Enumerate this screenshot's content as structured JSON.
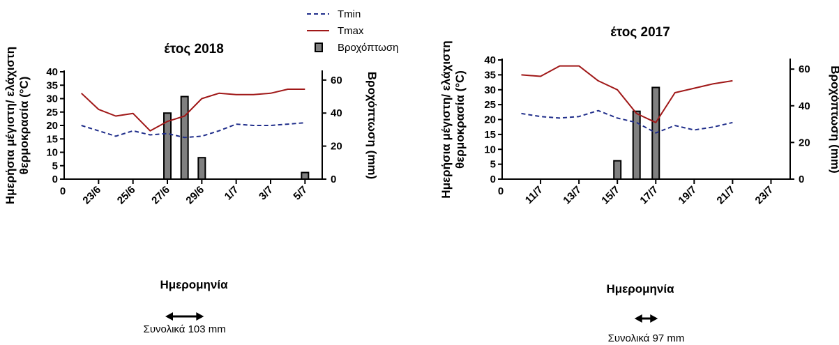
{
  "legend": {
    "position": "top-center",
    "items": [
      {
        "label": "Tmin",
        "style": "dashed-line",
        "color": "#1f2d8a"
      },
      {
        "label": "Tmax",
        "style": "solid-line",
        "color": "#a01818"
      },
      {
        "label": "Βροχόπτωση",
        "style": "bar",
        "color": "#808080"
      }
    ]
  },
  "chart_data": [
    {
      "type": "line+bar",
      "title": "έτος 2018",
      "xlabel": "Ημερομηνία",
      "ylabel": "Ημερήσια μέγιστη/ ελάχιστη θερμοκρασία (°C)",
      "y2label": "Βροχόπτωση (mm)",
      "x_origin_label": "0",
      "x_tick_labels": [
        "23/6",
        "25/6",
        "27/6",
        "29/6",
        "1/7",
        "3/7",
        "5/7"
      ],
      "x_ticks": [
        1,
        3,
        5,
        7,
        9,
        11,
        13
      ],
      "xlim": [
        -1,
        14
      ],
      "ylim": [
        0,
        40
      ],
      "y_ticks": [
        0,
        5,
        10,
        15,
        20,
        25,
        30,
        35,
        40
      ],
      "y2lim": [
        0,
        65
      ],
      "y2_ticks": [
        0,
        20,
        40,
        60
      ],
      "grid": false,
      "x": [
        0,
        1,
        2,
        3,
        4,
        5,
        6,
        7,
        8,
        9,
        10,
        11,
        12,
        13
      ],
      "series": [
        {
          "name": "Tmin",
          "axis": "left",
          "kind": "line",
          "values": [
            20,
            18,
            16,
            18,
            16.5,
            17,
            15.5,
            16,
            18,
            20.5,
            20,
            20,
            20.5,
            21
          ]
        },
        {
          "name": "Tmax",
          "axis": "right-temp",
          "kind": "line",
          "values": [
            32,
            26,
            23.5,
            24.5,
            18,
            21.5,
            23.5,
            30,
            32,
            31.5,
            31.5,
            32,
            33.5,
            33.5
          ]
        },
        {
          "name": "Βροχόπτωση",
          "axis": "right",
          "kind": "bar",
          "bars": [
            {
              "x": 5,
              "value": 40
            },
            {
              "x": 6,
              "value": 50
            },
            {
              "x": 7,
              "value": 13
            },
            {
              "x": 13,
              "value": 4
            }
          ]
        }
      ],
      "total_note": "Συνολικά 103 mm",
      "total_range_days": [
        5,
        7
      ]
    },
    {
      "type": "line+bar",
      "title": "έτος 2017",
      "xlabel": "Ημερομηνία",
      "ylabel": "Ημερήσια μέγιστη/ ελάχιστη θερμοκρασία (°C)",
      "y2label": "Βροχόπτωση (mm)",
      "x_origin_label": "0",
      "x_tick_labels": [
        "11/7",
        "13/7",
        "15/7",
        "17/7",
        "19/7",
        "21/7",
        "23/7"
      ],
      "x_ticks": [
        2,
        4,
        6,
        8,
        10,
        12,
        14
      ],
      "xlim": [
        0,
        15
      ],
      "ylim": [
        0,
        40
      ],
      "y_ticks": [
        0,
        5,
        10,
        15,
        20,
        25,
        30,
        35,
        40
      ],
      "y2lim": [
        0,
        65
      ],
      "y2_ticks": [
        0,
        20,
        40,
        60
      ],
      "grid": false,
      "x": [
        1,
        2,
        3,
        4,
        5,
        6,
        7,
        8,
        9,
        10,
        11,
        12
      ],
      "series": [
        {
          "name": "Tmin",
          "axis": "left",
          "kind": "line",
          "values": [
            22,
            21,
            20.5,
            21,
            23,
            20.5,
            19,
            15.5,
            18,
            16.5,
            17.5,
            19
          ]
        },
        {
          "name": "Tmax",
          "axis": "left",
          "kind": "line",
          "values": [
            35,
            34.5,
            38,
            38,
            33,
            30,
            22,
            19,
            29,
            30.5,
            32,
            33
          ]
        },
        {
          "name": "Βροχόπτωση",
          "axis": "right",
          "kind": "bar",
          "bars": [
            {
              "x": 6,
              "value": 10
            },
            {
              "x": 7,
              "value": 37
            },
            {
              "x": 8,
              "value": 50
            }
          ]
        }
      ],
      "total_note": "Συνολικά 97 mm",
      "total_range_days": [
        7,
        8
      ]
    }
  ]
}
